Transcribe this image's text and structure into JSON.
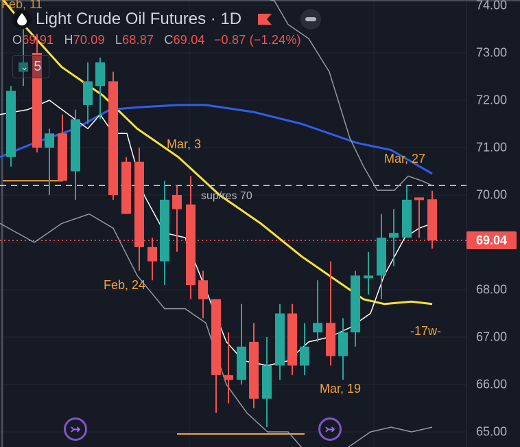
{
  "header": {
    "symbol_icon": "oil-drop-icon",
    "title": "Light Crude Oil Futures · 1D",
    "flag_icon": "flag-icon",
    "flag_color": "#f05350",
    "collapse_icon": "minus-icon"
  },
  "ohlc": {
    "open_label": "O",
    "open": "69.91",
    "high_label": "H",
    "high": "70.09",
    "low_label": "L",
    "low": "68.87",
    "close_label": "C",
    "close": "69.04",
    "change": "−0.87",
    "change_pct": "(−1.24%)"
  },
  "indicators_toggle": {
    "chevron_icon": "chevron-down-icon",
    "count": "5"
  },
  "price_axis": {
    "labels": [
      "74.00",
      "73.00",
      "72.00",
      "71.00",
      "70.00",
      "68.00",
      "67.00",
      "66.00",
      "65.00"
    ],
    "current_price": "69.04",
    "current_price_color": "#f05350"
  },
  "annotations": {
    "feb11": "Feb, 11",
    "mar3": "Mar, 3",
    "feb24": "Feb, 24",
    "mar27": "Mar, 27",
    "mar19": "Mar, 19",
    "sup_res": "sup/res 70",
    "weeks": "-17w-"
  },
  "colors": {
    "background": "#161a25",
    "up": "#26a69a",
    "down": "#f05350",
    "ma_yellow": "#f5e13a",
    "ma_blue": "#2f5fe8",
    "annotation": "#f3a43b",
    "compare_icon": "#7e57c2"
  },
  "chart_data": {
    "type": "candlestick",
    "title": "Light Crude Oil Futures · 1D",
    "ylim": [
      65.0,
      74.0
    ],
    "yticks": [
      65,
      66,
      67,
      68,
      69,
      70,
      71,
      72,
      73,
      74
    ],
    "horizontal_lines": [
      {
        "label": "sup/res 70",
        "value": 70.2,
        "style": "dashed"
      },
      {
        "label": "last price",
        "value": 69.04,
        "style": "dotted"
      }
    ],
    "candles": [
      {
        "x": 16,
        "o": 70.8,
        "h": 72.3,
        "l": 70.6,
        "c": 72.2
      },
      {
        "x": 34,
        "o": 72.6,
        "h": 73.5,
        "l": 72.3,
        "c": 72.8
      },
      {
        "x": 54,
        "o": 73.0,
        "h": 73.4,
        "l": 70.9,
        "c": 71.0
      },
      {
        "x": 72,
        "o": 71.0,
        "h": 71.4,
        "l": 70.0,
        "c": 71.3
      },
      {
        "x": 91,
        "o": 71.3,
        "h": 71.7,
        "l": 70.3,
        "c": 70.3
      },
      {
        "x": 110,
        "o": 70.5,
        "h": 71.8,
        "l": 69.9,
        "c": 71.6
      },
      {
        "x": 128,
        "o": 71.9,
        "h": 72.8,
        "l": 71.5,
        "c": 72.4
      },
      {
        "x": 146,
        "o": 72.3,
        "h": 72.9,
        "l": 71.6,
        "c": 72.8
      },
      {
        "x": 165,
        "o": 72.4,
        "h": 72.6,
        "l": 69.9,
        "c": 70.0
      },
      {
        "x": 184,
        "o": 70.7,
        "h": 70.8,
        "l": 69.6,
        "c": 69.6
      },
      {
        "x": 203,
        "o": 70.7,
        "h": 71.0,
        "l": 68.4,
        "c": 68.9
      },
      {
        "x": 222,
        "o": 68.9,
        "h": 69.1,
        "l": 68.2,
        "c": 68.6
      },
      {
        "x": 240,
        "o": 68.6,
        "h": 70.3,
        "l": 68.1,
        "c": 69.9
      },
      {
        "x": 258,
        "o": 70.0,
        "h": 70.2,
        "l": 68.8,
        "c": 69.7
      },
      {
        "x": 278,
        "o": 69.8,
        "h": 70.4,
        "l": 67.8,
        "c": 68.1
      },
      {
        "x": 296,
        "o": 68.2,
        "h": 68.4,
        "l": 67.4,
        "c": 67.8
      },
      {
        "x": 315,
        "o": 67.8,
        "h": 67.8,
        "l": 65.4,
        "c": 66.2
      },
      {
        "x": 333,
        "o": 66.2,
        "h": 67.1,
        "l": 65.6,
        "c": 66.1
      },
      {
        "x": 352,
        "o": 66.1,
        "h": 67.7,
        "l": 66.0,
        "c": 66.8
      },
      {
        "x": 370,
        "o": 66.9,
        "h": 67.3,
        "l": 65.5,
        "c": 65.7
      },
      {
        "x": 389,
        "o": 65.7,
        "h": 67.0,
        "l": 65.1,
        "c": 66.4
      },
      {
        "x": 408,
        "o": 66.4,
        "h": 67.7,
        "l": 66.1,
        "c": 67.5
      },
      {
        "x": 426,
        "o": 67.5,
        "h": 67.7,
        "l": 66.2,
        "c": 66.4
      },
      {
        "x": 444,
        "o": 66.4,
        "h": 67.3,
        "l": 66.2,
        "c": 66.8
      },
      {
        "x": 463,
        "o": 67.1,
        "h": 68.2,
        "l": 66.9,
        "c": 67.3
      },
      {
        "x": 482,
        "o": 67.3,
        "h": 68.6,
        "l": 66.4,
        "c": 66.6
      },
      {
        "x": 500,
        "o": 66.6,
        "h": 67.4,
        "l": 66.1,
        "c": 67.1
      },
      {
        "x": 518,
        "o": 67.1,
        "h": 68.4,
        "l": 66.8,
        "c": 68.3
      },
      {
        "x": 537,
        "o": 68.3,
        "h": 68.8,
        "l": 67.9,
        "c": 68.3
      },
      {
        "x": 556,
        "o": 68.3,
        "h": 69.6,
        "l": 67.8,
        "c": 69.1
      },
      {
        "x": 574,
        "o": 69.1,
        "h": 69.7,
        "l": 68.5,
        "c": 69.2
      },
      {
        "x": 593,
        "o": 69.1,
        "h": 70.2,
        "l": 69.1,
        "c": 69.9
      },
      {
        "x": 611,
        "o": 69.95,
        "h": 69.95,
        "l": 69.1,
        "c": 69.9
      },
      {
        "x": 630,
        "o": 69.91,
        "h": 70.09,
        "l": 68.87,
        "c": 69.04
      }
    ],
    "series": [
      {
        "name": "MA yellow",
        "color": "#f5e13a",
        "values": [
          [
            0,
            74.2
          ],
          [
            40,
            73.5
          ],
          [
            90,
            72.7
          ],
          [
            150,
            72.1
          ],
          [
            200,
            71.4
          ],
          [
            260,
            70.8
          ],
          [
            320,
            70.0
          ],
          [
            380,
            69.4
          ],
          [
            440,
            68.7
          ],
          [
            500,
            68.1
          ],
          [
            530,
            67.8
          ],
          [
            560,
            67.7
          ],
          [
            600,
            67.75
          ],
          [
            630,
            67.7
          ]
        ]
      },
      {
        "name": "MA blue",
        "color": "#2f5fe8",
        "values": [
          [
            0,
            70.8
          ],
          [
            50,
            71.1
          ],
          [
            110,
            71.4
          ],
          [
            160,
            71.8
          ],
          [
            200,
            71.85
          ],
          [
            260,
            71.9
          ],
          [
            300,
            71.9
          ],
          [
            370,
            71.75
          ],
          [
            440,
            71.5
          ],
          [
            520,
            71.1
          ],
          [
            570,
            70.95
          ],
          [
            630,
            70.45
          ]
        ]
      },
      {
        "name": "fast line white",
        "color": "#ffffff",
        "values": [
          [
            0,
            71.7
          ],
          [
            40,
            71.8
          ],
          [
            72,
            72.0
          ],
          [
            100,
            71.7
          ],
          [
            128,
            71.4
          ],
          [
            146,
            71.7
          ],
          [
            165,
            71.3
          ],
          [
            185,
            71.3
          ],
          [
            210,
            70.0
          ],
          [
            240,
            69.2
          ],
          [
            270,
            69.1
          ],
          [
            300,
            68.0
          ],
          [
            330,
            66.9
          ],
          [
            355,
            66.5
          ],
          [
            390,
            66.4
          ],
          [
            420,
            66.5
          ],
          [
            450,
            66.9
          ],
          [
            480,
            67.0
          ],
          [
            510,
            67.2
          ],
          [
            540,
            67.5
          ],
          [
            560,
            68.3
          ],
          [
            590,
            69.1
          ],
          [
            611,
            69.3
          ],
          [
            630,
            69.4
          ]
        ]
      },
      {
        "name": "band gray",
        "color": "#9598a1",
        "values": [
          [
            0,
            69.4
          ],
          [
            50,
            69.0
          ],
          [
            90,
            69.4
          ],
          [
            130,
            69.6
          ],
          [
            165,
            69.3
          ],
          [
            200,
            68.3
          ],
          [
            240,
            67.6
          ],
          [
            270,
            67.6
          ],
          [
            300,
            67.3
          ],
          [
            330,
            66.0
          ],
          [
            360,
            65.4
          ],
          [
            390,
            65.0
          ],
          [
            420,
            65.0
          ],
          [
            450,
            64.5
          ],
          [
            500,
            64.6
          ],
          [
            540,
            65.0
          ],
          [
            570,
            65.1
          ],
          [
            600,
            65.0
          ],
          [
            630,
            65.1
          ]
        ]
      },
      {
        "name": "band gray upper",
        "color": "#9598a1",
        "values": [
          [
            210,
            74.3
          ],
          [
            260,
            74.5
          ],
          [
            330,
            74.3
          ],
          [
            370,
            74.2
          ],
          [
            400,
            74.1
          ],
          [
            420,
            73.6
          ],
          [
            450,
            73.3
          ],
          [
            480,
            72.6
          ],
          [
            510,
            71.2
          ],
          [
            530,
            70.6
          ],
          [
            550,
            70.1
          ],
          [
            575,
            70.1
          ],
          [
            595,
            70.4
          ],
          [
            615,
            70.3
          ],
          [
            630,
            70.2
          ]
        ]
      }
    ]
  }
}
